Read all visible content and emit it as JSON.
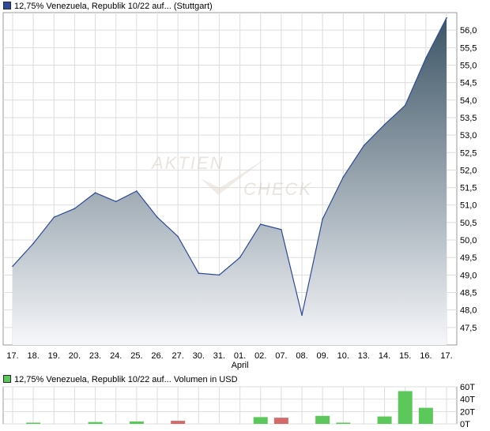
{
  "legend": {
    "price": "12,75% Venezuela, Republik 10/22 auf... (Stuttgart)",
    "volume": "12,75% Venezuela, Republik 10/22 auf... Volumen in USD",
    "price_color": "#2d4a9c",
    "volume_color": "#5cc85c"
  },
  "watermark": {
    "line1": "AKTIEN",
    "line2": "CHECK"
  },
  "chart_data": [
    {
      "type": "area",
      "x": [
        "17.",
        "18.",
        "19.",
        "20.",
        "23.",
        "24.",
        "25.",
        "26.",
        "27.",
        "30.",
        "31.",
        "01.",
        "02.",
        "07.",
        "08.",
        "09.",
        "10.",
        "13.",
        "14.",
        "15.",
        "16.",
        "17."
      ],
      "month_label": "April",
      "values": [
        49.25,
        49.9,
        50.65,
        50.9,
        51.35,
        51.1,
        51.4,
        50.65,
        50.1,
        49.05,
        49.0,
        49.5,
        50.45,
        50.3,
        47.85,
        50.6,
        51.8,
        52.7,
        53.3,
        53.85,
        55.2,
        56.35
      ],
      "ylim": [
        47.0,
        56.5
      ],
      "yticks": [
        "47,5",
        "48,0",
        "48,5",
        "49,0",
        "49,5",
        "50,0",
        "50,5",
        "51,0",
        "51,5",
        "52,0",
        "52,5",
        "53,0",
        "53,5",
        "54,0",
        "54,5",
        "55,0",
        "55,5",
        "56,0"
      ],
      "grid": true,
      "colors": {
        "line": "#2d4a9c",
        "fill_top": "#3d5566",
        "fill_bottom": "#f6f7fa"
      }
    },
    {
      "type": "bar",
      "x": [
        "17.",
        "18.",
        "19.",
        "20.",
        "23.",
        "24.",
        "25.",
        "26.",
        "27.",
        "30.",
        "31.",
        "01.",
        "02.",
        "07.",
        "08.",
        "09.",
        "10.",
        "13.",
        "14.",
        "15.",
        "16.",
        "17."
      ],
      "values": [
        0,
        2,
        0,
        0,
        3,
        0,
        4,
        0,
        5,
        0,
        0,
        0,
        11,
        10,
        0,
        13,
        2,
        0,
        12,
        53,
        26,
        0
      ],
      "bar_colors": [
        "#5cc85c",
        "#5cc85c",
        "#5cc85c",
        "#5cc85c",
        "#5cc85c",
        "#5cc85c",
        "#5cc85c",
        "#5cc85c",
        "#d46a6a",
        "#5cc85c",
        "#5cc85c",
        "#5cc85c",
        "#5cc85c",
        "#d46a6a",
        "#5cc85c",
        "#5cc85c",
        "#5cc85c",
        "#5cc85c",
        "#5cc85c",
        "#5cc85c",
        "#5cc85c",
        "#5cc85c"
      ],
      "ylim": [
        0,
        60
      ],
      "yticks": [
        "0T",
        "20T",
        "40T",
        "60T"
      ],
      "grid": true
    }
  ]
}
